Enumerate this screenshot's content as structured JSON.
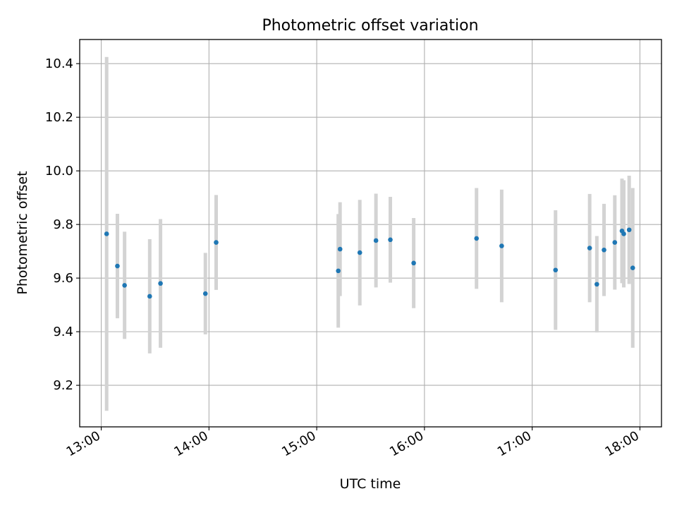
{
  "chart_data": {
    "type": "scatter",
    "title": "Photometric offset variation",
    "xlabel": "UTC time",
    "ylabel": "Photometric offset",
    "xlim": [
      "12:48",
      "18:12"
    ],
    "ylim": [
      9.045,
      10.49
    ],
    "grid": true,
    "x_ticks": [
      "13:00",
      "14:00",
      "15:00",
      "16:00",
      "17:00",
      "18:00"
    ],
    "y_ticks": [
      9.2,
      9.4,
      9.6,
      9.8,
      10.0,
      10.2,
      10.4
    ],
    "y_tick_labels": [
      "9.2",
      "9.4",
      "9.6",
      "9.8",
      "10.0",
      "10.2",
      "10.4"
    ],
    "colors": {
      "point": "#1f77b4",
      "errorbar": "#d3d3d3",
      "grid": "#b0b0b0"
    },
    "series": [
      {
        "points": [
          {
            "x": "13:03",
            "y": 9.765,
            "err": 0.66
          },
          {
            "x": "13:09",
            "y": 9.645,
            "err": 0.195
          },
          {
            "x": "13:13",
            "y": 9.573,
            "err": 0.2
          },
          {
            "x": "13:27",
            "y": 9.532,
            "err": 0.213
          },
          {
            "x": "13:33",
            "y": 9.58,
            "err": 0.24
          },
          {
            "x": "13:58",
            "y": 9.542,
            "err": 0.152
          },
          {
            "x": "14:04",
            "y": 9.733,
            "err": 0.177
          },
          {
            "x": "15:12",
            "y": 9.627,
            "err": 0.212
          },
          {
            "x": "15:13",
            "y": 9.708,
            "err": 0.175
          },
          {
            "x": "15:24",
            "y": 9.695,
            "err": 0.197
          },
          {
            "x": "15:33",
            "y": 9.74,
            "err": 0.175
          },
          {
            "x": "15:41",
            "y": 9.743,
            "err": 0.16
          },
          {
            "x": "15:54",
            "y": 9.656,
            "err": 0.168
          },
          {
            "x": "16:29",
            "y": 9.748,
            "err": 0.188
          },
          {
            "x": "16:43",
            "y": 9.72,
            "err": 0.21
          },
          {
            "x": "17:13",
            "y": 9.63,
            "err": 0.223
          },
          {
            "x": "17:32",
            "y": 9.712,
            "err": 0.202
          },
          {
            "x": "17:36",
            "y": 9.577,
            "err": 0.18
          },
          {
            "x": "17:40",
            "y": 9.705,
            "err": 0.172
          },
          {
            "x": "17:46",
            "y": 9.733,
            "err": 0.176
          },
          {
            "x": "17:50",
            "y": 9.776,
            "err": 0.195
          },
          {
            "x": "17:51",
            "y": 9.765,
            "err": 0.2
          },
          {
            "x": "17:54",
            "y": 9.78,
            "err": 0.202
          },
          {
            "x": "17:56",
            "y": 9.638,
            "err": 0.298
          }
        ]
      }
    ]
  }
}
